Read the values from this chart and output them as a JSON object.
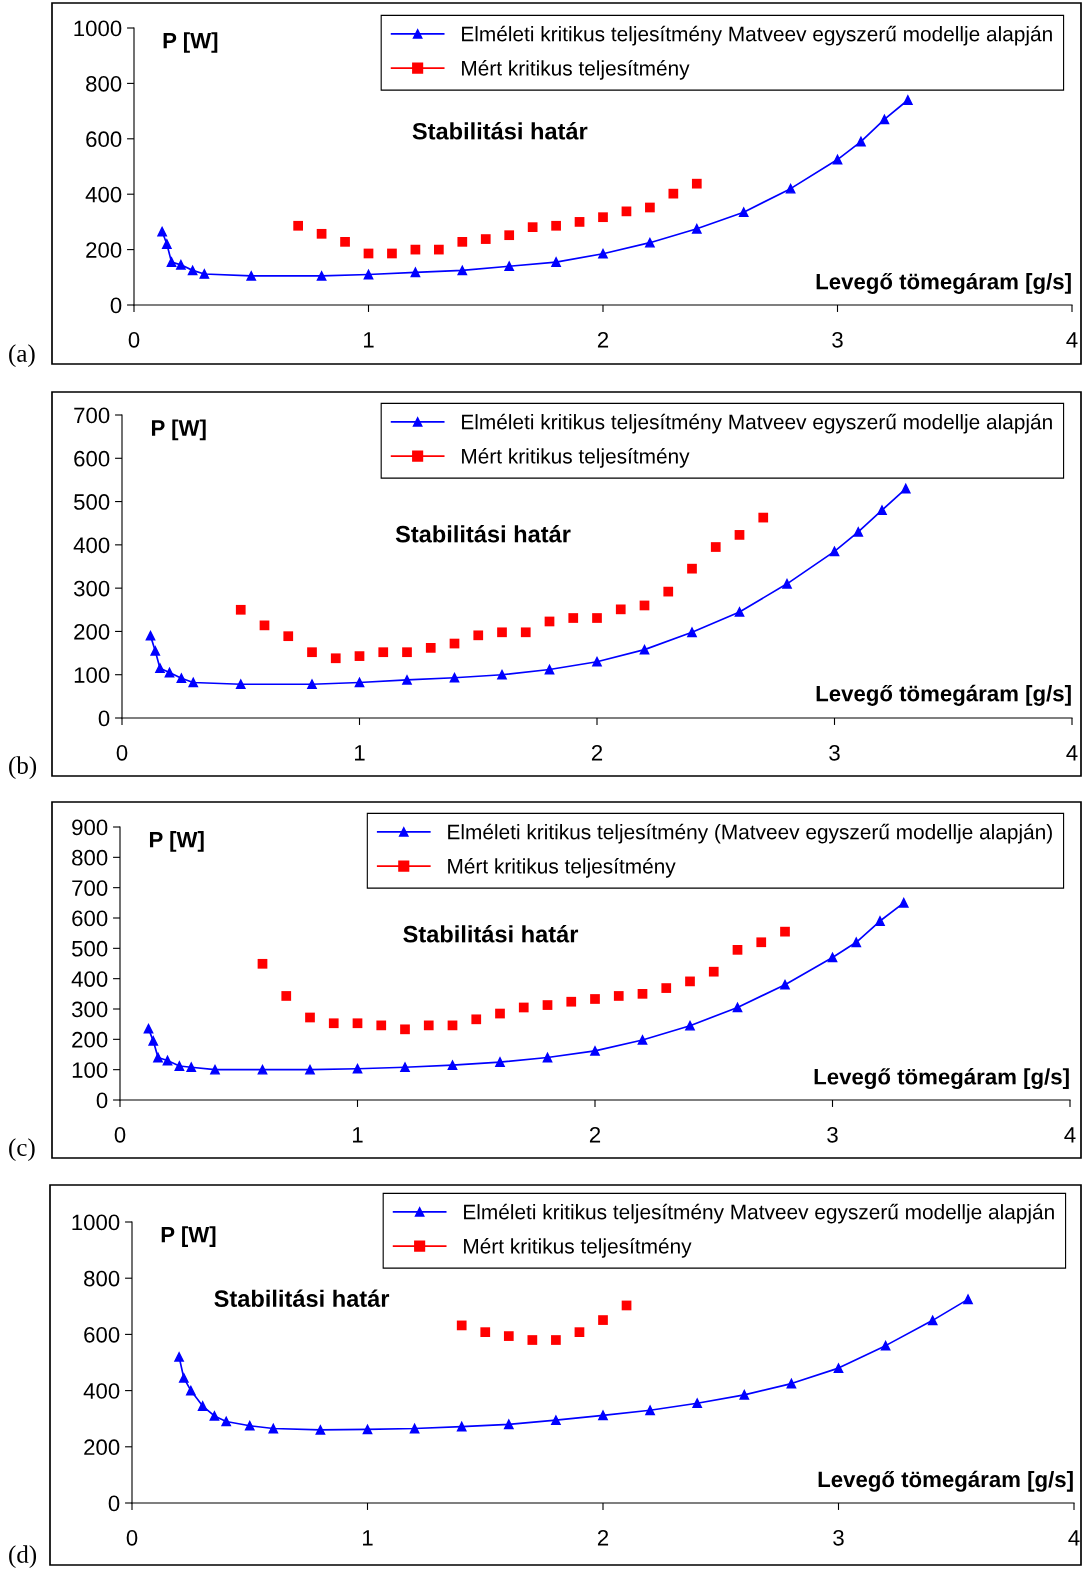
{
  "chart_data": [
    {
      "type": "line",
      "title": "Stabilitási határ",
      "xlabel": "Levegő tömegáram [g/s]",
      "ylabel": "P [W]",
      "annotations": [
        "(a)"
      ],
      "xlim": [
        0,
        4
      ],
      "xticks": [
        0,
        1,
        2,
        3,
        4
      ],
      "ylim": [
        0,
        1000
      ],
      "yticks": [
        0,
        200,
        400,
        600,
        800,
        1000
      ],
      "grid": false,
      "legend": "top right",
      "series": [
        {
          "name": "Elméleti kritikus teljesítmény Matveev egyszerű modellje alapján",
          "color": "#0000ff",
          "marker": "triangle",
          "line_style": "solid",
          "x": [
            0.12,
            0.14,
            0.16,
            0.2,
            0.25,
            0.3,
            0.5,
            0.8,
            1.0,
            1.2,
            1.4,
            1.6,
            1.8,
            2.0,
            2.2,
            2.4,
            2.6,
            2.8,
            3.0,
            3.1,
            3.2,
            3.3
          ],
          "values": [
            265,
            220,
            155,
            145,
            125,
            112,
            105,
            105,
            110,
            118,
            125,
            140,
            155,
            185,
            225,
            275,
            335,
            420,
            525,
            590,
            670,
            740
          ]
        },
        {
          "name": "Mért kritikus teljesítmény",
          "color": "#ff0000",
          "type": "scatter",
          "marker": "square",
          "x": [
            0.7,
            0.8,
            0.9,
            1.0,
            1.1,
            1.2,
            1.3,
            1.4,
            1.5,
            1.6,
            1.7,
            1.8,
            1.9,
            2.0,
            2.1,
            2.2,
            2.3,
            2.4
          ],
          "values": [
            286,
            257,
            228,
            186,
            186,
            200,
            200,
            228,
            238,
            252,
            281,
            286,
            300,
            317,
            338,
            352,
            402,
            438
          ]
        }
      ]
    },
    {
      "type": "line",
      "title": "Stabilitási határ",
      "xlabel": "Levegő tömegáram [g/s]",
      "ylabel": "P [W]",
      "annotations": [
        "(b)"
      ],
      "xlim": [
        0,
        4
      ],
      "xticks": [
        0,
        1,
        2,
        3,
        4
      ],
      "ylim": [
        0,
        700
      ],
      "yticks": [
        0,
        100,
        200,
        300,
        400,
        500,
        600,
        700
      ],
      "grid": false,
      "legend": "top right",
      "series": [
        {
          "name": "Elméleti kritikus teljesítmény Matveev egyszerű modellje alapján",
          "color": "#0000ff",
          "marker": "triangle",
          "line_style": "solid",
          "x": [
            0.12,
            0.14,
            0.16,
            0.2,
            0.25,
            0.3,
            0.5,
            0.8,
            1.0,
            1.2,
            1.4,
            1.6,
            1.8,
            2.0,
            2.2,
            2.4,
            2.6,
            2.8,
            3.0,
            3.1,
            3.2,
            3.3
          ],
          "values": [
            190,
            155,
            115,
            105,
            92,
            82,
            78,
            78,
            82,
            88,
            93,
            100,
            112,
            130,
            158,
            198,
            245,
            310,
            385,
            430,
            480,
            530
          ]
        },
        {
          "name": "Mért kritikus teljesítmény",
          "color": "#ff0000",
          "type": "scatter",
          "marker": "square",
          "x": [
            0.5,
            0.6,
            0.7,
            0.8,
            0.9,
            1.0,
            1.1,
            1.2,
            1.3,
            1.4,
            1.5,
            1.6,
            1.7,
            1.8,
            1.9,
            2.0,
            2.1,
            2.2,
            2.3,
            2.4,
            2.5,
            2.6,
            2.7
          ],
          "values": [
            250,
            214,
            189,
            152,
            138,
            143,
            152,
            152,
            162,
            172,
            191,
            198,
            198,
            223,
            231,
            231,
            251,
            260,
            292,
            345,
            395,
            423,
            463
          ]
        }
      ]
    },
    {
      "type": "line",
      "title": "Stabilitási határ",
      "xlabel": "Levegő tömegáram [g/s]",
      "ylabel": "P [W]",
      "annotations": [
        "(c)"
      ],
      "xlim": [
        0,
        4
      ],
      "xticks": [
        0,
        1,
        2,
        3,
        4
      ],
      "ylim": [
        0,
        900
      ],
      "yticks": [
        0,
        100,
        200,
        300,
        400,
        500,
        600,
        700,
        800,
        900
      ],
      "grid": false,
      "legend": "top right",
      "series": [
        {
          "name": "Elméleti kritikus teljesítmény (Matveev egyszerű modellje alapján)",
          "color": "#0000ff",
          "marker": "triangle",
          "line_style": "solid",
          "x": [
            0.12,
            0.14,
            0.16,
            0.2,
            0.25,
            0.3,
            0.4,
            0.6,
            0.8,
            1.0,
            1.2,
            1.4,
            1.6,
            1.8,
            2.0,
            2.2,
            2.4,
            2.6,
            2.8,
            3.0,
            3.1,
            3.2,
            3.3
          ],
          "values": [
            235,
            195,
            140,
            130,
            112,
            108,
            100,
            100,
            100,
            103,
            108,
            115,
            125,
            140,
            162,
            198,
            245,
            305,
            380,
            470,
            520,
            590,
            650
          ]
        },
        {
          "name": "Mért kritikus teljesítmény",
          "color": "#ff0000",
          "type": "scatter",
          "marker": "square",
          "x": [
            0.6,
            0.7,
            0.8,
            0.9,
            1.0,
            1.1,
            1.2,
            1.3,
            1.4,
            1.5,
            1.6,
            1.7,
            1.8,
            1.9,
            2.0,
            2.1,
            2.2,
            2.3,
            2.4,
            2.5,
            2.6,
            2.7,
            2.8
          ],
          "values": [
            449,
            343,
            272,
            253,
            253,
            246,
            233,
            246,
            246,
            266,
            285,
            305,
            313,
            324,
            333,
            343,
            350,
            369,
            391,
            423,
            495,
            520,
            555
          ]
        }
      ]
    },
    {
      "type": "line",
      "title": "Stabilitási határ",
      "xlabel": "Levegő tömegáram [g/s]",
      "ylabel": "P [W]",
      "annotations": [
        "(d)"
      ],
      "xlim": [
        0,
        4
      ],
      "xticks": [
        0,
        1,
        2,
        3,
        4
      ],
      "ylim": [
        0,
        1000
      ],
      "yticks": [
        0,
        200,
        400,
        600,
        800,
        1000
      ],
      "grid": false,
      "legend": "top right",
      "series": [
        {
          "name": "Elméleti kritikus teljesítmény Matveev egyszerű modellje alapján",
          "color": "#0000ff",
          "marker": "triangle",
          "line_style": "solid",
          "x": [
            0.2,
            0.22,
            0.25,
            0.3,
            0.35,
            0.4,
            0.5,
            0.6,
            0.8,
            1.0,
            1.2,
            1.4,
            1.6,
            1.8,
            2.0,
            2.2,
            2.4,
            2.6,
            2.8,
            3.0,
            3.2,
            3.4,
            3.55
          ],
          "values": [
            520,
            445,
            400,
            345,
            310,
            290,
            275,
            265,
            260,
            262,
            265,
            272,
            280,
            295,
            312,
            330,
            355,
            385,
            425,
            480,
            560,
            650,
            725
          ]
        },
        {
          "name": "Mért kritikus teljesítmény",
          "color": "#ff0000",
          "type": "scatter",
          "marker": "square",
          "x": [
            1.4,
            1.5,
            1.6,
            1.7,
            1.8,
            1.9,
            2.0,
            2.1
          ],
          "values": [
            632,
            608,
            594,
            580,
            580,
            608,
            651,
            703
          ]
        }
      ]
    }
  ]
}
